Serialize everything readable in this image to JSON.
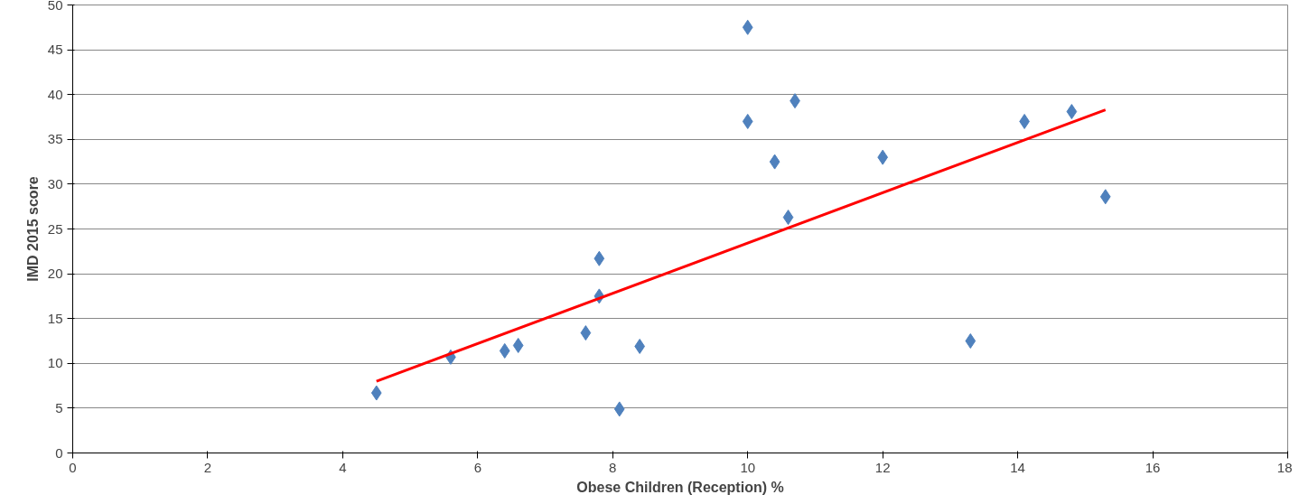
{
  "chart_data": {
    "type": "scatter",
    "xlabel": "Obese Children (Reception) %",
    "ylabel": "IMD 2015 score",
    "xlim": [
      0,
      18
    ],
    "xticks": [
      0,
      2,
      4,
      6,
      8,
      10,
      12,
      14,
      16,
      18
    ],
    "ylim": [
      0,
      50
    ],
    "yticks": [
      0,
      5,
      10,
      15,
      20,
      25,
      30,
      35,
      40,
      45,
      50
    ],
    "grid": "y",
    "series": [
      {
        "marker": "diamond",
        "color": "#4f81bd",
        "x": [
          4.5,
          5.6,
          6.4,
          6.6,
          7.6,
          7.8,
          7.8,
          8.1,
          8.4,
          10,
          10,
          10.4,
          10.6,
          10.7,
          12.0,
          13.3,
          14.1,
          14.8,
          15.3
        ],
        "values": [
          6.7,
          10.7,
          11.4,
          12.0,
          13.4,
          21.7,
          17.5,
          4.9,
          11.9,
          47.5,
          37.0,
          32.5,
          26.3,
          39.3,
          33.0,
          12.5,
          37.0,
          38.1,
          28.6
        ]
      },
      {
        "type": "line",
        "color": "#ff0000",
        "x": [
          4.5,
          15.3
        ],
        "values": [
          8.0,
          38.3
        ]
      }
    ]
  }
}
